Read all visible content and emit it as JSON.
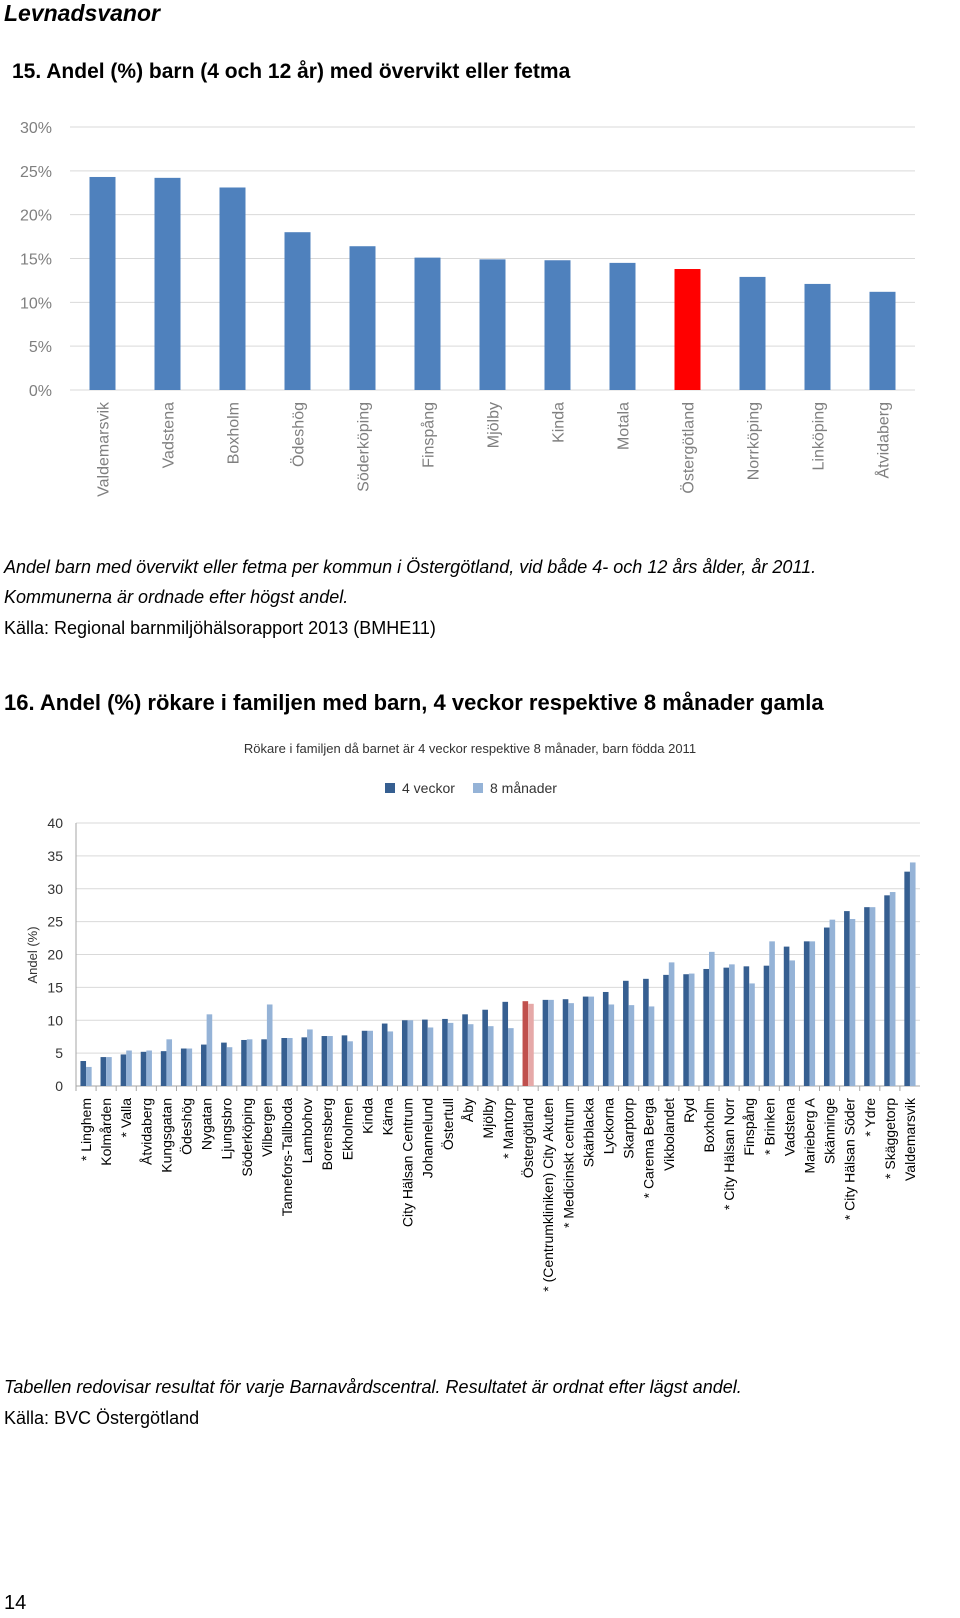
{
  "section_title": "Levnadsvanor",
  "chart1": {
    "heading": "15. Andel (%) barn (4 och 12 år) med övervikt eller fetma",
    "caption_line1": "Andel barn med övervikt eller fetma per kommun i Östergötland, vid både 4- och 12 års ålder, år 2011.",
    "caption_line2": "Kommunerna är ordnade efter högst andel.",
    "source": "Källa: Regional barnmiljöhälsorapport 2013 (BMHE11)"
  },
  "chart2": {
    "heading": "16. Andel (%) rökare i familjen med barn, 4 veckor respektive 8 månader gamla",
    "caption": "Tabellen redovisar resultat för varje Barnavårdscentral. Resultatet är ordnat efter lägst andel.",
    "source": "Källa: BVC Östergötland"
  },
  "page_number": "14",
  "chart_data": [
    {
      "type": "bar",
      "title": "",
      "xlabel": "",
      "ylabel": "",
      "ylim": [
        0,
        30
      ],
      "yticks": [
        "0%",
        "5%",
        "10%",
        "15%",
        "20%",
        "25%",
        "30%"
      ],
      "grid": true,
      "categories": [
        "Valdemarsvik",
        "Vadstena",
        "Boxholm",
        "Ödeshög",
        "Söderköping",
        "Finspång",
        "Mjölby",
        "Kinda",
        "Motala",
        "Östergötland",
        "Norrköping",
        "Linköping",
        "Åtvidaberg"
      ],
      "values": [
        24.3,
        24.2,
        23.1,
        18.0,
        16.4,
        15.1,
        14.9,
        14.8,
        14.5,
        13.8,
        12.9,
        12.1,
        11.2
      ],
      "colors": {
        "default": "#4f81bd",
        "highlight": "#ff0000"
      },
      "highlight": "Östergötland"
    },
    {
      "type": "bar",
      "title": "Rökare i familjen då barnet är 4 veckor respektive 8 månader, barn födda 2011",
      "xlabel": "",
      "ylabel": "Andel (%)",
      "ylim": [
        0,
        40
      ],
      "yticks": [
        "0",
        "5",
        "10",
        "15",
        "20",
        "25",
        "30",
        "35",
        "40"
      ],
      "grid": true,
      "legend": "top",
      "categories": [
        "* Linghem",
        "Kolmården",
        "* Valla",
        "Åtvidaberg",
        "Kungsgatan",
        "Ödeshög",
        "Nygatan",
        "Ljungsbro",
        "Söderköping",
        "Vilbergen",
        "Tannefors-Tallboda",
        "Lambohov",
        "Borensberg",
        "Ekholmen",
        "Kinda",
        "Kärna",
        "City Hälsan Centrum",
        "Johannelund",
        "Östertull",
        "Åby",
        "Mjölby",
        "* Mantorp",
        "Östergötland",
        "* (Centrumkliniken) City Akuten",
        "* Medicinskt centrum",
        "Skärblacka",
        "Lyckorna",
        "Skarptorp",
        "* Carema Berga",
        "Vikbolandet",
        "Ryd",
        "Boxholm",
        "* City Hälsan Norr",
        "Finspång",
        "* Brinken",
        "Vadstena",
        "Marieberg A",
        "Skänninge",
        "* City Hälsan Söder",
        "* Ydre",
        "* Skäggetorp",
        "Valdemarsvik"
      ],
      "series": [
        {
          "name": "4 veckor",
          "color": "#365f91",
          "values": [
            3.8,
            4.4,
            4.8,
            5.2,
            5.3,
            5.7,
            6.3,
            6.6,
            7.0,
            7.1,
            7.3,
            7.4,
            7.6,
            7.7,
            8.4,
            9.5,
            10.0,
            10.1,
            10.2,
            10.9,
            11.6,
            12.8,
            12.9,
            13.1,
            13.2,
            13.6,
            14.3,
            16.0,
            16.3,
            16.9,
            17.0,
            17.8,
            18.0,
            18.2,
            18.3,
            21.2,
            22.0,
            24.1,
            26.6,
            27.2,
            29.0,
            32.6
          ]
        },
        {
          "name": "8 månader",
          "color": "#95b3d7",
          "values": [
            2.9,
            4.4,
            5.4,
            5.4,
            7.1,
            5.7,
            10.9,
            5.9,
            7.1,
            12.4,
            7.3,
            8.6,
            7.6,
            6.8,
            8.4,
            8.3,
            10.0,
            8.9,
            9.6,
            9.4,
            9.1,
            8.8,
            12.5,
            13.1,
            12.6,
            13.6,
            12.4,
            12.3,
            12.1,
            18.8,
            17.1,
            20.4,
            18.5,
            15.6,
            22.0,
            19.1,
            22.0,
            25.3,
            25.4,
            27.2,
            29.5,
            34.0
          ]
        }
      ],
      "highlight": "Östergötland",
      "highlight_colors": {
        "4 veckor": "#c0504d",
        "8 månader": "#e6a9a8"
      }
    }
  ]
}
